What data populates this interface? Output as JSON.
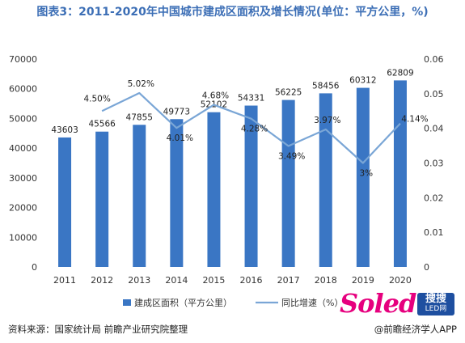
{
  "header": {
    "title": "图表3：2011-2020年中国城市建成区面积及增长情况(单位：平方公里，%)"
  },
  "footer": {
    "source": "资料来源：国家统计局 前瞻产业研究院整理",
    "credit": "@前瞻经济学人APP"
  },
  "logo": {
    "script": "Soled",
    "box_cn": "搜搜",
    "box_en": "LED网"
  },
  "chart_data": {
    "type": "bar",
    "categories": [
      "2011",
      "2012",
      "2013",
      "2014",
      "2015",
      "2016",
      "2017",
      "2018",
      "2019",
      "2020"
    ],
    "series": [
      {
        "name": "建成区面积（平方公里）",
        "type": "bar",
        "axis": "left",
        "color": "#3a76c4",
        "values": [
          43603,
          45566,
          47855,
          49773,
          52102,
          54331,
          56225,
          58456,
          60312,
          62809
        ],
        "labels": [
          "43603",
          "45566",
          "47855",
          "49773",
          "52102",
          "54331",
          "56225",
          "58456",
          "60312",
          "62809"
        ]
      },
      {
        "name": "同比增速（%）",
        "type": "line",
        "axis": "right",
        "color": "#7aa6d6",
        "values": [
          null,
          0.045,
          0.0502,
          0.0401,
          0.0468,
          0.0428,
          0.0349,
          0.0397,
          0.03,
          0.0414
        ],
        "labels": [
          "",
          "4.50%",
          "5.02%",
          "4.01%",
          "4.68%",
          "4.28%",
          "3.49%",
          "3.97%",
          "3%",
          "4.14%"
        ]
      }
    ],
    "y_left": {
      "min": 0,
      "max": 70000,
      "ticks": [
        "0",
        "10000",
        "20000",
        "30000",
        "40000",
        "50000",
        "60000",
        "70000"
      ]
    },
    "y_right": {
      "min": 0,
      "max": 0.06,
      "ticks": [
        "0",
        "0.01",
        "0.02",
        "0.03",
        "0.04",
        "0.05",
        "0.06"
      ]
    },
    "legend_position": "bottom",
    "grid": false
  }
}
